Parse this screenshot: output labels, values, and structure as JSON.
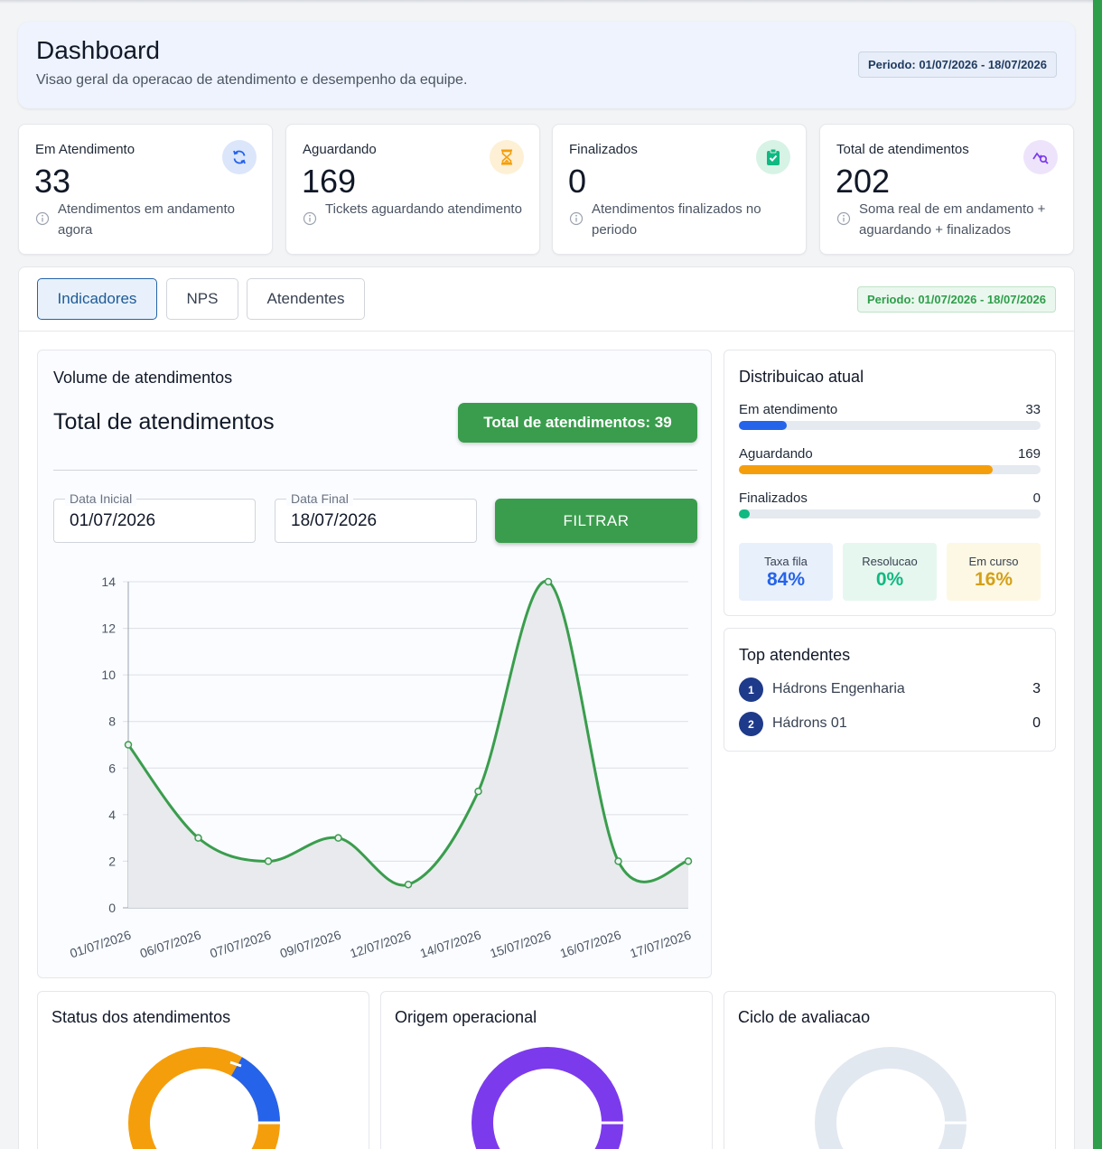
{
  "header": {
    "title": "Dashboard",
    "subtitle": "Visao geral da operacao de atendimento e desempenho da equipe.",
    "period": "Periodo: 01/07/2026 - 18/07/2026"
  },
  "kpis": [
    {
      "label": "Em Atendimento",
      "value": "33",
      "desc": "Atendimentos em andamento agora",
      "icon": "refresh-icon",
      "icon_color": "#2563eb",
      "icon_bg": "#dbe6fb"
    },
    {
      "label": "Aguardando",
      "value": "169",
      "desc": "Tickets aguardando atendimento",
      "icon": "hourglass-icon",
      "icon_color": "#f59e0b",
      "icon_bg": "#fdf0d5"
    },
    {
      "label": "Finalizados",
      "value": "0",
      "desc": "Atendimentos finalizados no periodo",
      "icon": "clipboard-check-icon",
      "icon_color": "#10b981",
      "icon_bg": "#d6f3e6"
    },
    {
      "label": "Total de atendimentos",
      "value": "202",
      "desc": "Soma real de em andamento + aguardando + finalizados",
      "icon": "analytics-icon",
      "icon_color": "#7c3aed",
      "icon_bg": "#ede4fb"
    }
  ],
  "tabs": {
    "items": [
      "Indicadores",
      "NPS",
      "Atendentes"
    ],
    "active": "Indicadores",
    "period": "Periodo: 01/07/2026 - 18/07/2026"
  },
  "volume": {
    "title": "Volume de atendimentos",
    "big_title": "Total de atendimentos",
    "total_label": "Total de atendimentos: 39",
    "start_label": "Data Inicial",
    "start_value": "01/07/2026",
    "end_label": "Data Final",
    "end_value": "18/07/2026",
    "filter_label": "FILTRAR"
  },
  "chart_data": {
    "type": "area",
    "title": "",
    "xlabel": "",
    "ylabel": "",
    "x": [
      "01/07/2026",
      "06/07/2026",
      "07/07/2026",
      "09/07/2026",
      "12/07/2026",
      "14/07/2026",
      "15/07/2026",
      "16/07/2026",
      "17/07/2026"
    ],
    "values": [
      7,
      3,
      2,
      3,
      1,
      5,
      14,
      2,
      2
    ],
    "ylim": [
      0,
      14
    ],
    "yticks": [
      0,
      2,
      4,
      6,
      8,
      10,
      12,
      14
    ],
    "grid": true,
    "line_color": "#3a9d4d",
    "fill_color": "#e8eaed"
  },
  "distribution": {
    "title": "Distribuicao atual",
    "rows": [
      {
        "label": "Em atendimento",
        "value": "33",
        "fraction": 0.16,
        "color": "#2563eb"
      },
      {
        "label": "Aguardando",
        "value": "169",
        "fraction": 0.84,
        "color": "#f59e0b"
      },
      {
        "label": "Finalizados",
        "value": "0",
        "fraction": 0.0,
        "color": "#10b981"
      }
    ],
    "minis": [
      {
        "label": "Taxa fila",
        "value": "84%",
        "bg": "#e8f0fc",
        "color": "#2563eb"
      },
      {
        "label": "Resolucao",
        "value": "0%",
        "bg": "#e6f7ef",
        "color": "#10b981"
      },
      {
        "label": "Em curso",
        "value": "16%",
        "bg": "#fdf8e3",
        "color": "#d4a017"
      }
    ]
  },
  "top_atendentes": {
    "title": "Top atendentes",
    "items": [
      {
        "rank": "1",
        "name": "Hádrons Engenharia",
        "value": "3"
      },
      {
        "rank": "2",
        "name": "Hádrons 01",
        "value": "0"
      }
    ]
  },
  "bottom": {
    "status_title": "Status dos atendimentos",
    "origem_title": "Origem operacional",
    "ciclo_title": "Ciclo de avaliacao"
  },
  "colors": {
    "accent_green": "#3a9d4d",
    "status_orange": "#f59e0b",
    "status_blue": "#2563eb",
    "origem_purple": "#7c3aed",
    "ciclo_gray": "#e2e8f0"
  }
}
